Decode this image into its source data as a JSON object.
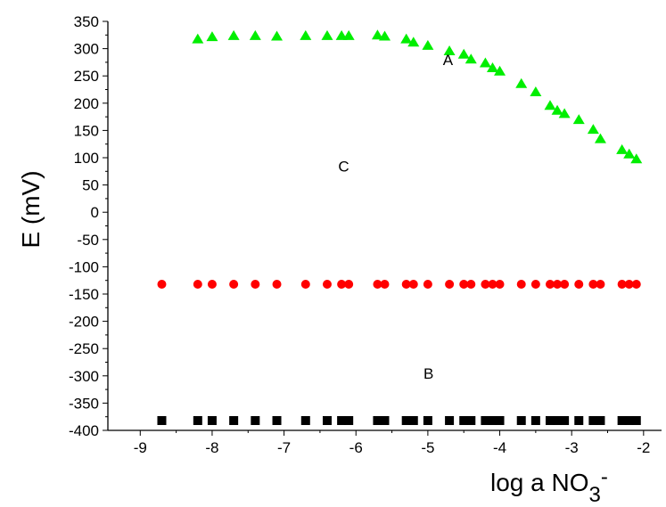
{
  "chart_data": {
    "type": "scatter",
    "title": "",
    "xlabel": "log a NO",
    "xlabel_sub": "3",
    "xlabel_sup": "-",
    "ylabel": "E (mV)",
    "xlim": [
      -9.45,
      -1.75
    ],
    "ylim": [
      -400,
      350
    ],
    "xticks": [
      -9,
      -8,
      -7,
      -6,
      -5,
      -4,
      -3,
      -2
    ],
    "yticks": [
      350,
      300,
      250,
      200,
      150,
      100,
      50,
      0,
      -50,
      -100,
      -150,
      -200,
      -250,
      -300,
      -350,
      -400
    ],
    "grid": false,
    "annotations": [
      {
        "text": "A",
        "x": -4.72,
        "y": 270
      },
      {
        "text": "C",
        "x": -6.17,
        "y": 75
      },
      {
        "text": "B",
        "x": -4.99,
        "y": -305
      }
    ],
    "series": [
      {
        "marker": "triangle",
        "color": "#00ee00",
        "x": [
          -8.2,
          -8.0,
          -7.7,
          -7.4,
          -7.1,
          -6.7,
          -6.4,
          -6.2,
          -6.1,
          -5.7,
          -5.6,
          -5.3,
          -5.2,
          -5.0,
          -4.7,
          -4.5,
          -4.4,
          -4.2,
          -4.1,
          -4.0,
          -3.7,
          -3.5,
          -3.3,
          -3.2,
          -3.1,
          -2.9,
          -2.7,
          -2.6,
          -2.3,
          -2.2,
          -2.1
        ],
        "y": [
          318,
          322,
          324,
          324,
          323,
          324,
          324,
          324,
          324,
          325,
          323,
          318,
          312,
          306,
          296,
          290,
          281,
          274,
          265,
          259,
          236,
          221,
          196,
          187,
          181,
          170,
          152,
          135,
          115,
          107,
          98
        ]
      },
      {
        "marker": "circle",
        "color": "#ff0000",
        "x": [
          -8.7,
          -8.2,
          -8.0,
          -7.7,
          -7.4,
          -7.1,
          -6.7,
          -6.4,
          -6.2,
          -6.1,
          -5.7,
          -5.6,
          -5.3,
          -5.2,
          -5.0,
          -4.7,
          -4.5,
          -4.4,
          -4.2,
          -4.1,
          -4.0,
          -3.7,
          -3.5,
          -3.3,
          -3.2,
          -3.1,
          -2.9,
          -2.7,
          -2.6,
          -2.3,
          -2.2,
          -2.1
        ],
        "y": [
          -132,
          -132,
          -132,
          -132,
          -132,
          -132,
          -132,
          -132,
          -132,
          -132,
          -132,
          -132,
          -132,
          -132,
          -132,
          -132,
          -132,
          -132,
          -132,
          -132,
          -132,
          -132,
          -132,
          -132,
          -132,
          -132,
          -132,
          -132,
          -132,
          -132,
          -132,
          -132
        ]
      },
      {
        "marker": "square",
        "color": "#000000",
        "x": [
          -8.7,
          -8.2,
          -8.0,
          -7.7,
          -7.4,
          -7.1,
          -6.7,
          -6.4,
          -6.2,
          -6.1,
          -5.7,
          -5.6,
          -5.3,
          -5.2,
          -5.0,
          -4.7,
          -4.5,
          -4.4,
          -4.2,
          -4.1,
          -4.0,
          -3.7,
          -3.5,
          -3.3,
          -3.2,
          -3.1,
          -2.9,
          -2.7,
          -2.6,
          -2.3,
          -2.2,
          -2.1
        ],
        "y": [
          -382,
          -382,
          -382,
          -382,
          -382,
          -382,
          -382,
          -382,
          -382,
          -382,
          -382,
          -382,
          -382,
          -382,
          -382,
          -382,
          -382,
          -382,
          -382,
          -382,
          -382,
          -382,
          -382,
          -382,
          -382,
          -382,
          -382,
          -382,
          -382,
          -382,
          -382,
          -382
        ]
      }
    ]
  }
}
